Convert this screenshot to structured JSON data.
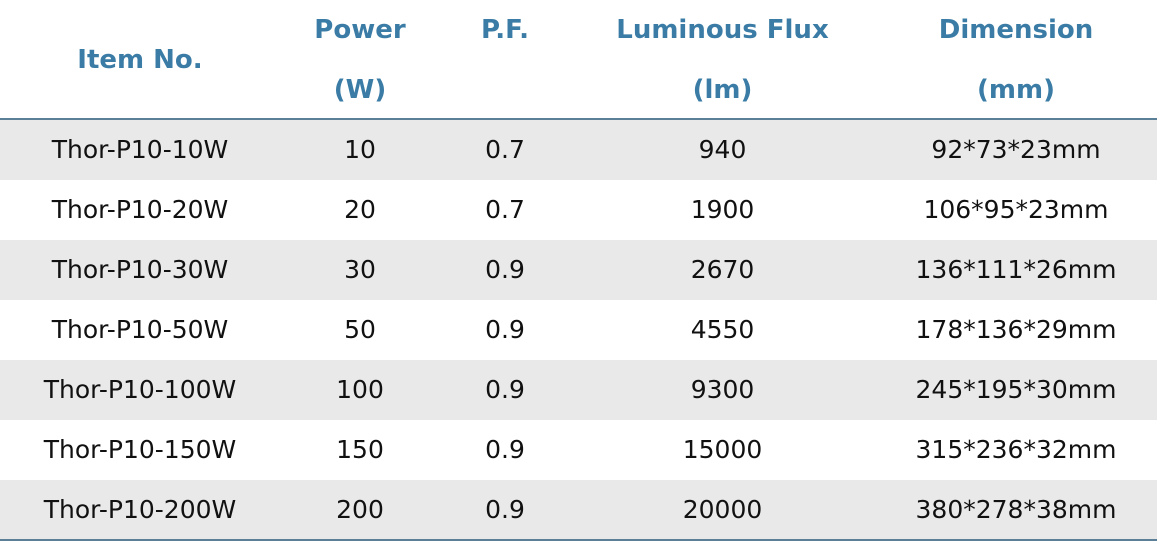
{
  "table": {
    "header": [
      [
        "Item No."
      ],
      [
        "Power",
        "(W)"
      ],
      [
        "P.F."
      ],
      [
        "Luminous Flux",
        "(lm)"
      ],
      [
        "Dimension",
        "(mm)"
      ]
    ],
    "rows": [
      [
        "Thor-P10-10W",
        "10",
        "0.7",
        "940",
        "92*73*23mm"
      ],
      [
        "Thor-P10-20W",
        "20",
        "0.7",
        "1900",
        "106*95*23mm"
      ],
      [
        "Thor-P10-30W",
        "30",
        "0.9",
        "2670",
        "136*111*26mm"
      ],
      [
        "Thor-P10-50W",
        "50",
        "0.9",
        "4550",
        "178*136*29mm"
      ],
      [
        "Thor-P10-100W",
        "100",
        "0.9",
        "9300",
        "245*195*30mm"
      ],
      [
        "Thor-P10-150W",
        "150",
        "0.9",
        "15000",
        "315*236*32mm"
      ],
      [
        "Thor-P10-200W",
        "200",
        "0.9",
        "20000",
        "380*278*38mm"
      ]
    ]
  }
}
